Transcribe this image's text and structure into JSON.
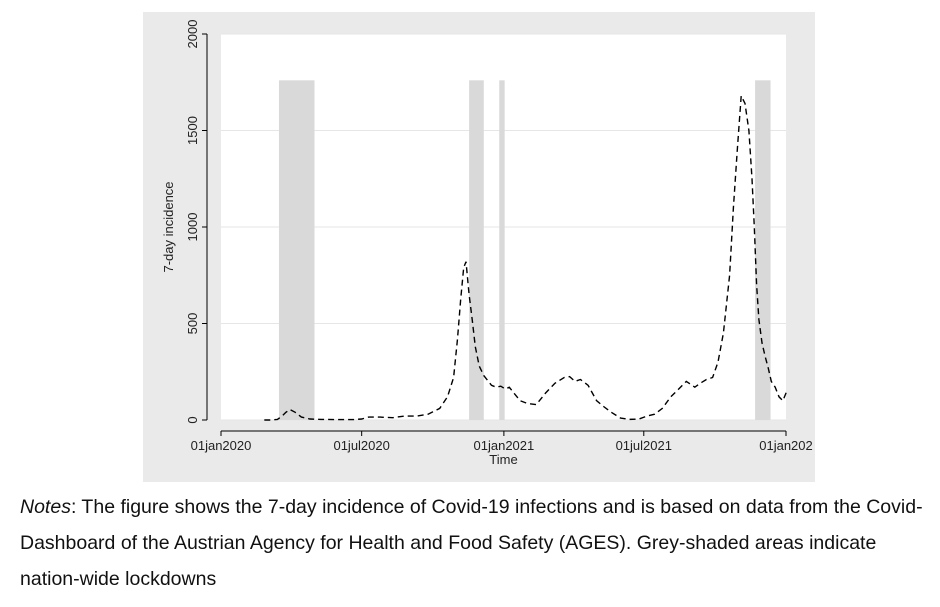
{
  "notes": {
    "label": "Notes",
    "text": ": The figure shows the 7-day incidence of Covid-19 infections and is based on data from the Covid-Dashboard of the Austrian Agency for Health and Food Safety (AGES). Grey-shaded areas indicate nation-wide lockdowns"
  },
  "chart_data": {
    "type": "line",
    "title": "",
    "xlabel": "Time",
    "ylabel": "7-day incidence",
    "xlim": [
      "2020-01-01",
      "2022-01-01"
    ],
    "ylim": [
      0,
      2000
    ],
    "grid": true,
    "x_ticks": [
      {
        "date": "2020-01-01",
        "label": "01jan2020"
      },
      {
        "date": "2020-07-01",
        "label": "01jul2020"
      },
      {
        "date": "2021-01-01",
        "label": "01jan2021"
      },
      {
        "date": "2021-07-01",
        "label": "01jul2021"
      },
      {
        "date": "2022-01-01",
        "label": "01jan202"
      }
    ],
    "y_ticks": [
      0,
      500,
      1000,
      1500,
      2000
    ],
    "line_color": "#000000",
    "shade_color": "#d9d9d9",
    "shade_top": 1760,
    "lockdowns": [
      {
        "start": "2020-03-16",
        "end": "2020-05-01"
      },
      {
        "start": "2020-11-17",
        "end": "2020-12-06"
      },
      {
        "start": "2020-12-26",
        "end": "2021-01-02"
      },
      {
        "start": "2021-11-22",
        "end": "2021-12-12"
      }
    ],
    "series": [
      {
        "x": [
          "2020-02-26",
          "2020-03-06",
          "2020-03-14",
          "2020-03-20",
          "2020-03-25",
          "2020-03-30",
          "2020-04-06",
          "2020-04-14",
          "2020-04-25",
          "2020-05-10",
          "2020-05-30",
          "2020-06-20",
          "2020-07-01",
          "2020-07-10",
          "2020-07-25",
          "2020-08-10",
          "2020-08-25",
          "2020-09-10",
          "2020-09-25",
          "2020-10-10",
          "2020-10-20",
          "2020-10-28",
          "2020-11-02",
          "2020-11-06",
          "2020-11-10",
          "2020-11-13",
          "2020-11-17",
          "2020-11-21",
          "2020-11-25",
          "2020-11-30",
          "2020-12-06",
          "2020-12-12",
          "2020-12-16",
          "2020-12-22",
          "2020-12-28",
          "2021-01-03",
          "2021-01-08",
          "2021-01-14",
          "2021-01-22",
          "2021-02-01",
          "2021-02-12",
          "2021-02-24",
          "2021-03-08",
          "2021-03-20",
          "2021-03-27",
          "2021-04-03",
          "2021-04-10",
          "2021-04-20",
          "2021-05-01",
          "2021-05-10",
          "2021-05-20",
          "2021-06-01",
          "2021-06-12",
          "2021-06-25",
          "2021-07-05",
          "2021-07-15",
          "2021-07-25",
          "2021-08-05",
          "2021-08-15",
          "2021-08-25",
          "2021-09-05",
          "2021-09-12",
          "2021-09-20",
          "2021-09-28",
          "2021-10-05",
          "2021-10-12",
          "2021-10-20",
          "2021-10-25",
          "2021-10-30",
          "2021-11-04",
          "2021-11-09",
          "2021-11-14",
          "2021-11-18",
          "2021-11-21",
          "2021-11-24",
          "2021-11-27",
          "2021-12-01",
          "2021-12-05",
          "2021-12-09",
          "2021-12-13",
          "2021-12-18",
          "2021-12-23",
          "2021-12-28",
          "2022-01-02"
        ],
        "y": [
          0,
          0,
          3,
          20,
          40,
          55,
          40,
          15,
          5,
          3,
          2,
          2,
          5,
          15,
          15,
          12,
          20,
          20,
          30,
          60,
          120,
          220,
          420,
          620,
          790,
          820,
          650,
          520,
          380,
          280,
          230,
          200,
          180,
          170,
          175,
          160,
          170,
          140,
          100,
          85,
          80,
          140,
          190,
          220,
          225,
          200,
          210,
          180,
          100,
          70,
          40,
          10,
          3,
          5,
          20,
          30,
          60,
          120,
          160,
          200,
          170,
          190,
          210,
          220,
          300,
          450,
          750,
          1100,
          1400,
          1680,
          1640,
          1500,
          1250,
          1000,
          700,
          520,
          400,
          330,
          270,
          200,
          170,
          120,
          100,
          150
        ]
      }
    ]
  }
}
